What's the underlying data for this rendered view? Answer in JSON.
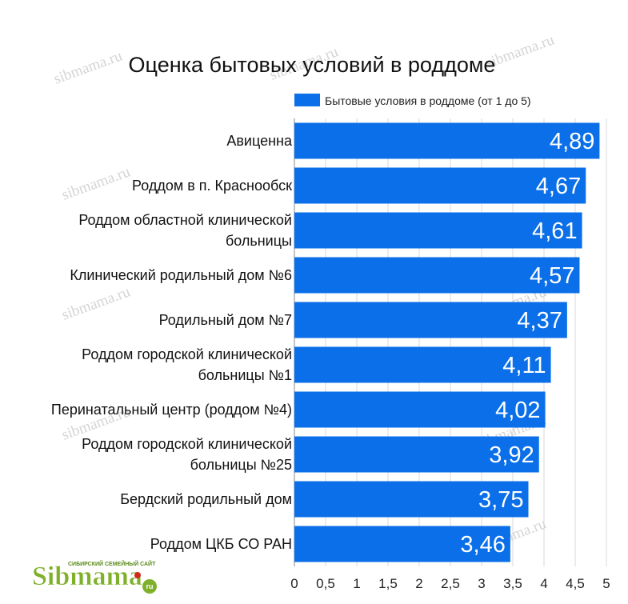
{
  "chart_data": {
    "type": "bar",
    "orientation": "horizontal",
    "title": "Оценка бытовых условий в роддоме",
    "legend": {
      "label": "Бытовые условия в роддоме (от 1 до 5)",
      "position": "top"
    },
    "categories": [
      "Авиценна",
      "Роддом в п. Краснообск",
      "Роддом областной клинической больницы",
      "Клинический родильный дом №6",
      "Родильный дом №7",
      "Роддом городской клинической больницы №1",
      "Перинатальный центр (роддом №4)",
      "Роддом городской клинической больницы №25",
      "Бердский родильный дом",
      "Роддом ЦКБ СО РАН"
    ],
    "category_lines": [
      [
        "Авиценна"
      ],
      [
        "Роддом в п. Краснообск"
      ],
      [
        "Роддом областной клинической",
        "больницы"
      ],
      [
        "Клинический родильный дом №6"
      ],
      [
        "Родильный дом №7"
      ],
      [
        "Роддом городской клинической",
        "больницы №1"
      ],
      [
        "Перинатальный центр (роддом №4)"
      ],
      [
        "Роддом городской клинической",
        "больницы №25"
      ],
      [
        "Бердский родильный дом"
      ],
      [
        "Роддом ЦКБ СО РАН"
      ]
    ],
    "values": [
      4.89,
      4.67,
      4.61,
      4.57,
      4.37,
      4.11,
      4.02,
      3.92,
      3.75,
      3.46
    ],
    "value_labels": [
      "4,89",
      "4,67",
      "4,61",
      "4,57",
      "4,37",
      "4,11",
      "4,02",
      "3,92",
      "3,75",
      "3,46"
    ],
    "xlim": [
      0,
      5
    ],
    "xticks": [
      0,
      0.5,
      1,
      1.5,
      2,
      2.5,
      3,
      3.5,
      4,
      4.5,
      5
    ],
    "xtick_labels": [
      "0",
      "0,5",
      "1",
      "1,5",
      "2",
      "2,5",
      "3",
      "3,5",
      "4",
      "4,5",
      "5"
    ],
    "grid": true,
    "bar_color": "#0a6fe8",
    "grid_color": "#d9d9d9"
  },
  "watermark": "sibmama.ru",
  "logo": {
    "text": "Sibmama",
    "tagline": "СИБИРСКИЙ СЕМЕЙНЫЙ САЙТ",
    "suffix": "ru"
  }
}
